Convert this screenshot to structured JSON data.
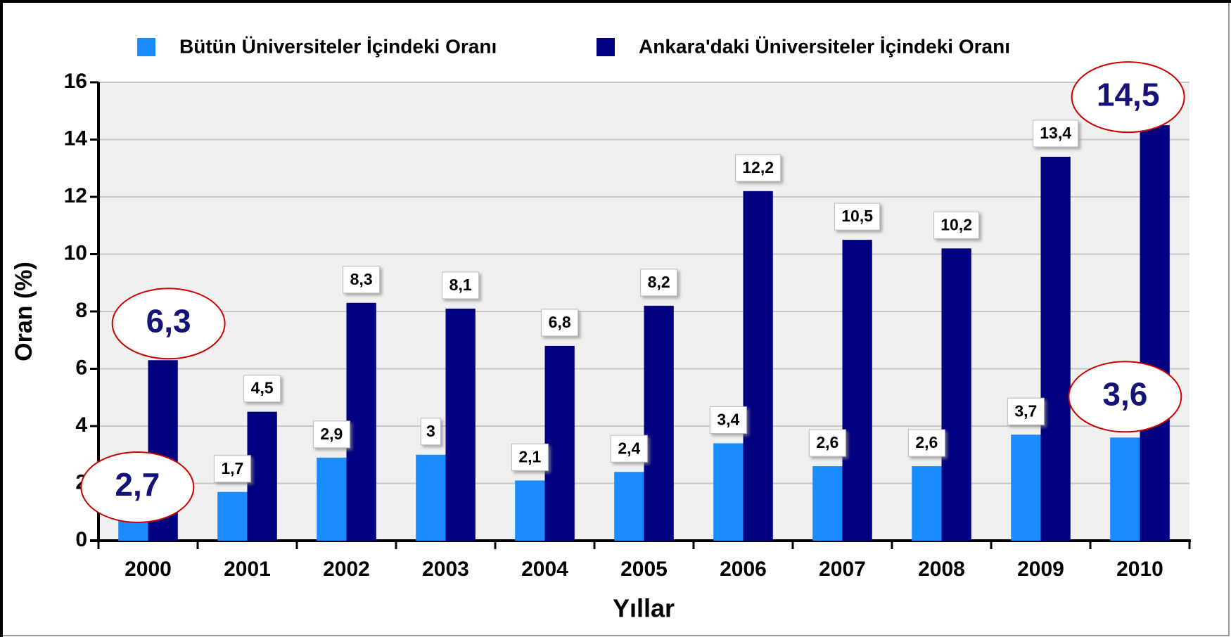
{
  "chart_data": {
    "type": "bar",
    "x_label": "Yıllar",
    "y_label": "Oran (%)",
    "categories": [
      "2000",
      "2001",
      "2002",
      "2003",
      "2004",
      "2005",
      "2006",
      "2007",
      "2008",
      "2009",
      "2010"
    ],
    "series": [
      {
        "name": "Bütün Üniversiteler İçindeki Oranı",
        "color": "#1a8cff",
        "values": [
          2.7,
          1.7,
          2.9,
          3,
          2.1,
          2.4,
          3.4,
          2.6,
          2.6,
          3.7,
          3.6
        ],
        "value_labels": [
          "2,7",
          "1,7",
          "2,9",
          "3",
          "2,1",
          "2,4",
          "3,4",
          "2,6",
          "2,6",
          "3,7",
          "3,6"
        ]
      },
      {
        "name": "Ankara'daki Üniversiteler İçindeki Oranı",
        "color": "#000080",
        "values": [
          6.3,
          4.5,
          8.3,
          8.1,
          6.8,
          8.2,
          12.2,
          10.5,
          10.2,
          13.4,
          14.5
        ],
        "value_labels": [
          "6,3",
          "4,5",
          "8,3",
          "8,1",
          "6,8",
          "8,2",
          "12,2",
          "10,5",
          "10,2",
          "13,4",
          "14,5"
        ]
      }
    ],
    "ylim": [
      0,
      16
    ],
    "yticks": [
      0,
      2,
      4,
      6,
      8,
      10,
      12,
      14,
      16
    ],
    "grid": true,
    "legend": "top"
  }
}
